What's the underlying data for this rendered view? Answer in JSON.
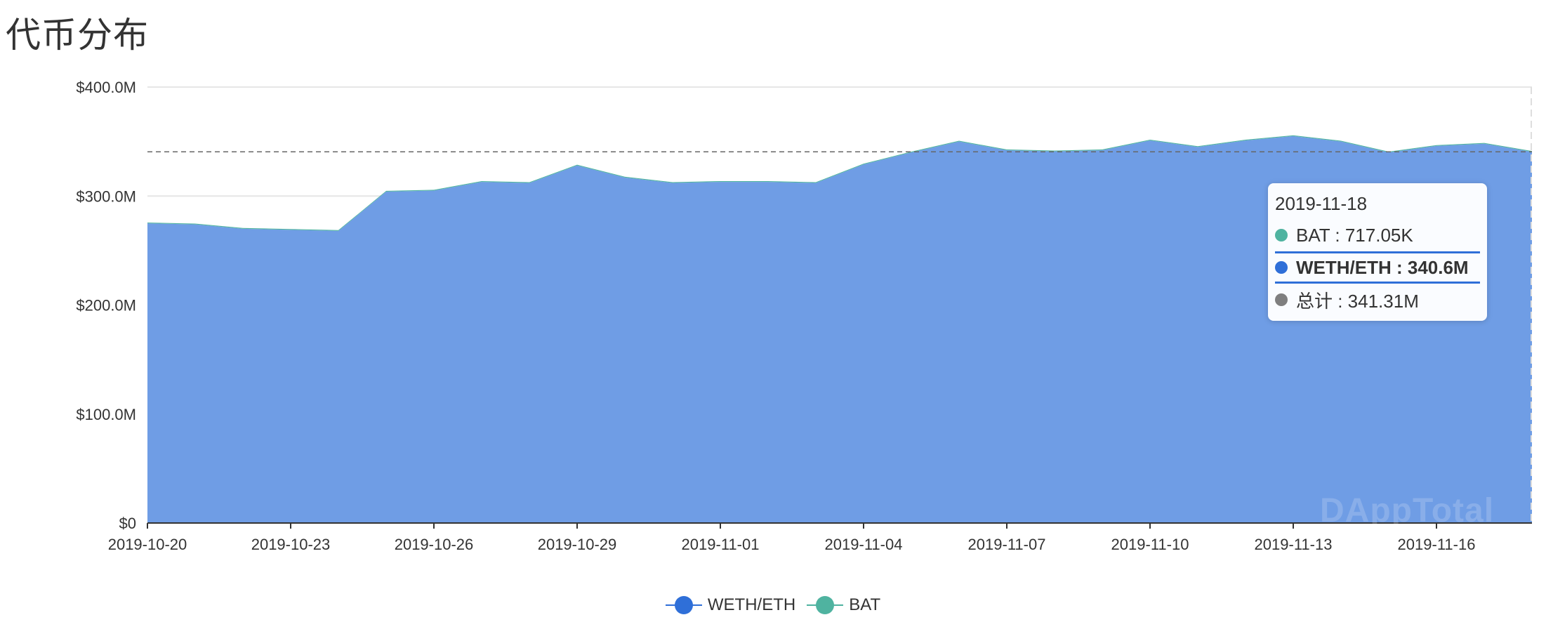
{
  "page": {
    "title": "代币分布"
  },
  "watermark": "DAppTotal",
  "colors": {
    "weth": "#2f6fd8",
    "area": "#6f9de5",
    "bat": "#4fb3a0",
    "total": "#7f7f7f",
    "grid": "#e6e6e6"
  },
  "chart_data": {
    "type": "area",
    "title": "代币分布",
    "x": [
      "2019-10-20",
      "2019-10-21",
      "2019-10-22",
      "2019-10-23",
      "2019-10-24",
      "2019-10-25",
      "2019-10-26",
      "2019-10-27",
      "2019-10-28",
      "2019-10-29",
      "2019-10-30",
      "2019-10-31",
      "2019-11-01",
      "2019-11-02",
      "2019-11-03",
      "2019-11-04",
      "2019-11-05",
      "2019-11-06",
      "2019-11-07",
      "2019-11-08",
      "2019-11-09",
      "2019-11-10",
      "2019-11-11",
      "2019-11-12",
      "2019-11-13",
      "2019-11-14",
      "2019-11-15",
      "2019-11-16",
      "2019-11-17",
      "2019-11-18"
    ],
    "x_tick_labels": [
      "2019-10-20",
      "2019-10-23",
      "2019-10-26",
      "2019-10-29",
      "2019-11-01",
      "2019-11-04",
      "2019-11-07",
      "2019-11-10",
      "2019-11-13",
      "2019-11-16"
    ],
    "y_ticks": [
      0,
      100,
      200,
      300,
      400
    ],
    "y_tick_labels": [
      "$0",
      "$100.0M",
      "$200.0M",
      "$300.0M",
      "$400.0M"
    ],
    "ylim": [
      0,
      400
    ],
    "y_unit": "M USD",
    "series": [
      {
        "name": "WETH/ETH",
        "values": [
          275,
          274,
          270,
          269,
          268,
          304,
          305,
          313,
          312,
          328,
          317,
          312,
          313,
          313,
          312,
          329,
          340,
          350,
          342,
          341,
          342,
          351,
          345,
          351,
          355,
          350,
          340,
          346,
          348,
          340.6
        ]
      },
      {
        "name": "BAT",
        "values": [
          0.72,
          0.72,
          0.72,
          0.72,
          0.72,
          0.72,
          0.72,
          0.72,
          0.72,
          0.72,
          0.72,
          0.72,
          0.72,
          0.72,
          0.72,
          0.72,
          0.72,
          0.72,
          0.72,
          0.72,
          0.72,
          0.72,
          0.72,
          0.72,
          0.72,
          0.72,
          0.72,
          0.72,
          0.72,
          0.72
        ]
      }
    ],
    "grid": true,
    "legend": "bottom-center",
    "hover_value": 340.6
  },
  "tooltip": {
    "date": "2019-11-18",
    "rows": [
      {
        "label": "BAT : 717.05K",
        "color": "#4fb3a0",
        "highlight": false
      },
      {
        "label": "WETH/ETH : 340.6M",
        "color": "#2f6fd8",
        "highlight": true
      },
      {
        "label": "总计 : 341.31M",
        "color": "#7f7f7f",
        "highlight": false
      }
    ]
  },
  "legend": [
    {
      "label": "WETH/ETH",
      "color": "#2f6fd8"
    },
    {
      "label": "BAT",
      "color": "#4fb3a0"
    }
  ]
}
